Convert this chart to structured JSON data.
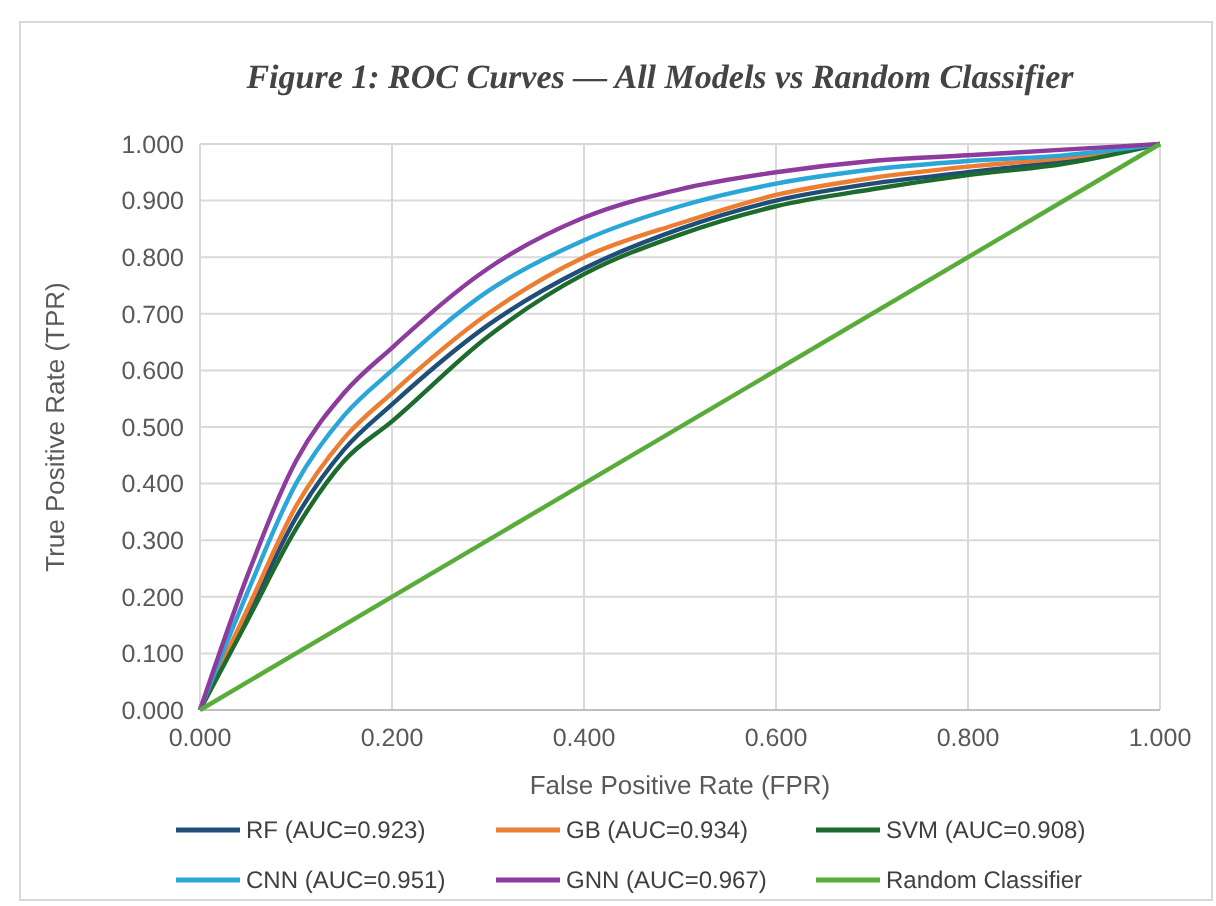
{
  "chart_data": {
    "type": "line",
    "title": "Figure 1: ROC Curves — All Models vs Random Classifier",
    "xlabel": "False Positive Rate (FPR)",
    "ylabel": "True Positive Rate (TPR)",
    "x": [
      0,
      0.05,
      0.1,
      0.15,
      0.2,
      0.3,
      0.4,
      0.5,
      0.6,
      0.7,
      0.8,
      0.9,
      1
    ],
    "series": [
      {
        "name": "RF (AUC=0.923)",
        "color": "#1f4e79",
        "values": [
          0,
          0.17,
          0.34,
          0.46,
          0.54,
          0.68,
          0.78,
          0.85,
          0.9,
          0.93,
          0.95,
          0.97,
          1
        ]
      },
      {
        "name": "GB (AUC=0.934)",
        "color": "#ed7d31",
        "values": [
          0,
          0.18,
          0.36,
          0.48,
          0.56,
          0.7,
          0.8,
          0.86,
          0.91,
          0.94,
          0.96,
          0.975,
          1
        ]
      },
      {
        "name": "SVM (AUC=0.908)",
        "color": "#1e6b2e",
        "values": [
          0,
          0.16,
          0.32,
          0.44,
          0.51,
          0.66,
          0.77,
          0.84,
          0.89,
          0.92,
          0.945,
          0.965,
          1
        ]
      },
      {
        "name": "CNN (AUC=0.951)",
        "color": "#2aa7d8",
        "values": [
          0,
          0.21,
          0.4,
          0.52,
          0.6,
          0.74,
          0.83,
          0.89,
          0.93,
          0.955,
          0.97,
          0.98,
          1
        ]
      },
      {
        "name": "GNN (AUC=0.967)",
        "color": "#8e3b9e",
        "values": [
          0,
          0.24,
          0.44,
          0.56,
          0.64,
          0.78,
          0.87,
          0.92,
          0.95,
          0.97,
          0.98,
          0.99,
          1
        ]
      },
      {
        "name": "Random Classifier",
        "color": "#5aac3a",
        "x": [
          0,
          1
        ],
        "values": [
          0,
          1
        ]
      }
    ],
    "xlim": [
      0,
      1
    ],
    "xticks": [
      {
        "value": 0,
        "label": "0.000"
      },
      {
        "value": 0.2,
        "label": "0.200"
      },
      {
        "value": 0.4,
        "label": "0.400"
      },
      {
        "value": 0.6,
        "label": "0.600"
      },
      {
        "value": 0.8,
        "label": "0.800"
      },
      {
        "value": 1,
        "label": "1.000"
      }
    ],
    "ylim": [
      0,
      1
    ],
    "yticks": [
      {
        "value": 0,
        "label": "0.000"
      },
      {
        "value": 0.1,
        "label": "0.100"
      },
      {
        "value": 0.2,
        "label": "0.200"
      },
      {
        "value": 0.3,
        "label": "0.300"
      },
      {
        "value": 0.4,
        "label": "0.400"
      },
      {
        "value": 0.5,
        "label": "0.500"
      },
      {
        "value": 0.6,
        "label": "0.600"
      },
      {
        "value": 0.7,
        "label": "0.700"
      },
      {
        "value": 0.8,
        "label": "0.800"
      },
      {
        "value": 0.9,
        "label": "0.900"
      },
      {
        "value": 1,
        "label": "1.000"
      }
    ],
    "grid": true,
    "legend": "bottom",
    "marker": "none",
    "line_style": "solid"
  }
}
